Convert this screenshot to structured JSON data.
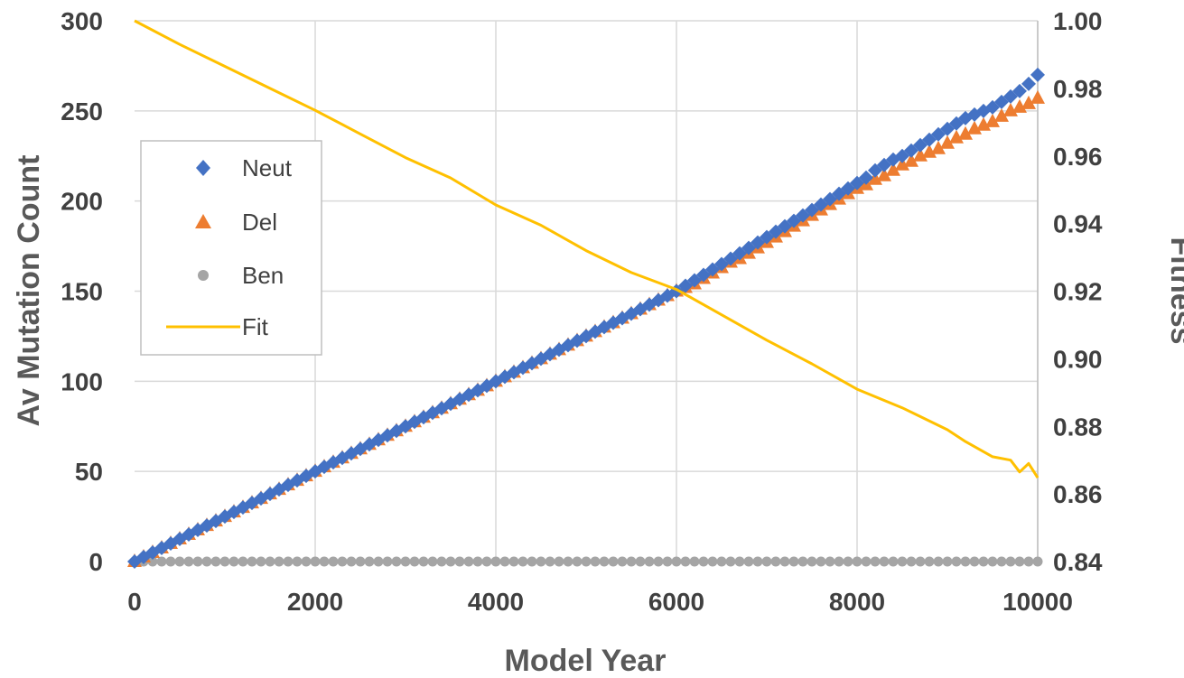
{
  "chart_data": {
    "type": "scatter",
    "xlabel": "Model Year",
    "ylabel": "Av Mutation Count",
    "y2label": "Fitness",
    "xlim": [
      0,
      10000
    ],
    "ylim": [
      0,
      300
    ],
    "y2lim": [
      0.84,
      1.0
    ],
    "x_ticks": [
      "0",
      "2000",
      "4000",
      "6000",
      "8000",
      "10000"
    ],
    "y_ticks": [
      "0",
      "50",
      "100",
      "150",
      "200",
      "250",
      "300"
    ],
    "y2_ticks": [
      "0.84",
      "0.86",
      "0.88",
      "0.90",
      "0.92",
      "0.94",
      "0.96",
      "0.98",
      "1.00"
    ],
    "grid": true,
    "legend_position": "left",
    "colors": {
      "Neut": "#4472C4",
      "Del": "#ED7D31",
      "Ben": "#A5A5A5",
      "Fit": "#FFC000",
      "grid": "#D9D9D9",
      "axis": "#BFBFBF"
    },
    "series": [
      {
        "name": "Neut",
        "marker": "diamond",
        "axis": "left",
        "x_step": 100,
        "values": [
          0,
          2.5,
          5,
          7.5,
          10,
          12.5,
          15,
          17.5,
          20,
          22.5,
          25,
          27.5,
          30,
          32.5,
          35,
          37.5,
          40,
          42.5,
          45,
          47.5,
          50,
          52.5,
          55,
          57.5,
          60,
          62.5,
          65,
          67.5,
          70,
          72.5,
          75,
          77.5,
          80,
          82.5,
          85,
          87.5,
          90,
          92.5,
          95,
          97.5,
          100,
          102.5,
          105,
          107.5,
          110,
          112.5,
          115,
          117.5,
          120,
          122.5,
          125,
          127.5,
          130,
          132.5,
          135,
          137.5,
          140,
          142.5,
          145,
          147.5,
          150,
          153,
          156,
          159,
          162,
          165,
          168,
          171,
          174,
          177,
          180,
          183,
          186,
          189,
          192,
          195,
          198,
          201,
          204,
          207,
          210,
          213,
          217,
          220,
          223,
          225,
          228,
          231,
          234,
          237,
          240,
          243,
          246,
          248,
          250,
          252,
          255,
          258,
          261,
          265,
          270
        ]
      },
      {
        "name": "Del",
        "marker": "triangle",
        "axis": "left",
        "x_step": 100,
        "values": [
          0,
          2.5,
          5,
          7.5,
          10,
          12.5,
          15,
          17.5,
          20,
          22.5,
          25,
          27.5,
          30,
          32.5,
          35,
          37.5,
          40,
          42.5,
          45,
          47.5,
          50,
          52.5,
          55,
          57.5,
          60,
          62.5,
          65,
          67.5,
          70,
          72.5,
          75,
          77.5,
          80,
          82.5,
          85,
          87.5,
          90,
          92.5,
          95,
          97.5,
          100,
          102.5,
          105,
          107.5,
          110,
          112.5,
          115,
          117.5,
          120,
          122.5,
          125,
          127.5,
          130,
          132.5,
          135,
          137.5,
          140,
          142.5,
          145,
          147.5,
          150,
          152,
          154,
          157,
          160,
          163,
          166,
          168,
          171,
          174,
          177,
          180,
          183,
          186,
          189,
          192,
          195,
          198,
          201,
          204,
          207,
          209,
          212,
          214,
          217,
          220,
          222,
          225,
          227,
          229,
          232,
          235,
          237,
          240,
          242,
          244,
          247,
          250,
          252,
          254,
          257
        ]
      },
      {
        "name": "Ben",
        "marker": "circle",
        "axis": "left",
        "x_step": 100,
        "constant_value": 0
      },
      {
        "name": "Fit",
        "marker": "line",
        "axis": "right",
        "x": [
          0,
          500,
          1000,
          1500,
          2000,
          2500,
          3000,
          3500,
          4000,
          4500,
          5000,
          5500,
          6000,
          6500,
          7000,
          7500,
          8000,
          8500,
          9000,
          9200,
          9500,
          9700,
          9800,
          9900,
          10000
        ],
        "values": [
          1.0,
          0.993,
          0.9865,
          0.98,
          0.9735,
          0.9665,
          0.9595,
          0.9535,
          0.9455,
          0.9395,
          0.932,
          0.9255,
          0.9205,
          0.913,
          0.9055,
          0.8985,
          0.891,
          0.8855,
          0.879,
          0.8755,
          0.871,
          0.87,
          0.8665,
          0.869,
          0.8648
        ]
      }
    ]
  }
}
